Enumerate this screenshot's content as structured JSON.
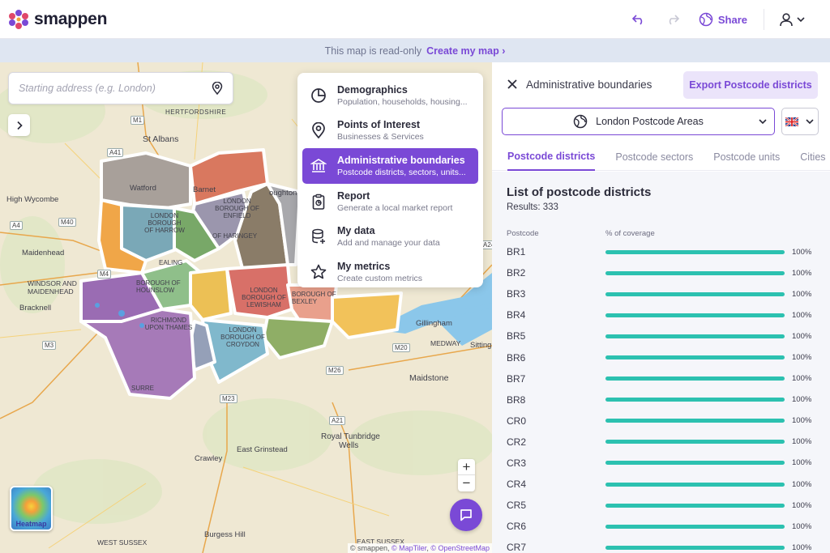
{
  "app": {
    "name": "smappen"
  },
  "header": {
    "share_label": "Share"
  },
  "banner": {
    "readonly_text": "This map is read-only",
    "create_link": "Create my map"
  },
  "search": {
    "placeholder": "Starting address (e.g. London)"
  },
  "menu": {
    "items": [
      {
        "title": "Demographics",
        "subtitle": "Population, households, housing...",
        "icon": "pie-chart-icon",
        "active": false
      },
      {
        "title": "Points of Interest",
        "subtitle": "Businesses & Services",
        "icon": "map-pin-icon",
        "active": false
      },
      {
        "title": "Administrative boundaries",
        "subtitle": "Postcode districts, sectors, units...",
        "icon": "bank-building-icon",
        "active": true
      },
      {
        "title": "Report",
        "subtitle": "Generate a local market report",
        "icon": "clipboard-icon",
        "active": false
      },
      {
        "title": "My data",
        "subtitle": "Add and manage your data",
        "icon": "database-icon",
        "active": false
      },
      {
        "title": "My metrics",
        "subtitle": "Create custom metrics",
        "icon": "star-icon",
        "active": false
      }
    ]
  },
  "map": {
    "labels": {
      "hertfordshire": "HERTFORDSHIRE",
      "st_albans": "St Albans",
      "high_wycombe": "High Wycombe",
      "watford": "Watford",
      "barnet": "Barnet",
      "loughton": "oughton",
      "maidenhead": "Maidenhead",
      "windsor": "WINDSOR AND",
      "maidenhead2": "MAIDENHEAD",
      "bracknell": "Bracknell",
      "gillingham": "Gillingham",
      "medway": "MEDWAY",
      "sitting": "Sitting",
      "maidstone": "Maidstone",
      "east_grinstead": "East Grinstead",
      "royal_tunbridge": "Royal Tunbridge",
      "wells": "Wells",
      "crawley": "Crawley",
      "west_sussex": "WEST SUSSEX",
      "burgess_hill": "Burgess Hill",
      "east_sussex": "EAST SUSSEX",
      "london_harrow": "LONDON BOROUGH OF HARROW",
      "london_enfield": "LONDON BOROUGH OF ENFIELD",
      "london_haringey": "OF HARINGEY",
      "london_hounslow": "BOROUGH OF HOUNSLOW",
      "richmond": "RICHMOND UPON THAMES",
      "lewisham": "LONDON BOROUGH OF LEWISHAM",
      "bexley": "BOROUGH OF BEXLEY",
      "croydon": "LONDON BOROUGH OF CROYDON",
      "ealing": "EALING",
      "surrey": "SURRE"
    },
    "roads": [
      "M1",
      "A41",
      "M40",
      "A4",
      "M4",
      "M3",
      "M26",
      "M23",
      "A21",
      "M20",
      "A249"
    ],
    "heatmap_label": "Heatmap",
    "attribution": {
      "prefix": "© smappen, ",
      "maptiler": "© MapTiler",
      "osm": "© OpenStreetMap"
    }
  },
  "panel": {
    "title": "Administrative boundaries",
    "export_label": "Export Postcode districts",
    "area_select": "London Postcode Areas",
    "tabs": [
      "Postcode districts",
      "Postcode sectors",
      "Postcode units",
      "Cities"
    ],
    "list_title": "List of postcode districts",
    "results_label": "Results: 333",
    "col_postcode": "Postcode",
    "col_coverage": "% of coverage",
    "rows": [
      {
        "code": "BR1",
        "coverage": 100,
        "label": "100%"
      },
      {
        "code": "BR2",
        "coverage": 100,
        "label": "100%"
      },
      {
        "code": "BR3",
        "coverage": 100,
        "label": "100%"
      },
      {
        "code": "BR4",
        "coverage": 100,
        "label": "100%"
      },
      {
        "code": "BR5",
        "coverage": 100,
        "label": "100%"
      },
      {
        "code": "BR6",
        "coverage": 100,
        "label": "100%"
      },
      {
        "code": "BR7",
        "coverage": 100,
        "label": "100%"
      },
      {
        "code": "BR8",
        "coverage": 100,
        "label": "100%"
      },
      {
        "code": "CR0",
        "coverage": 100,
        "label": "100%"
      },
      {
        "code": "CR2",
        "coverage": 100,
        "label": "100%"
      },
      {
        "code": "CR3",
        "coverage": 100,
        "label": "100%"
      },
      {
        "code": "CR4",
        "coverage": 100,
        "label": "100%"
      },
      {
        "code": "CR5",
        "coverage": 100,
        "label": "100%"
      },
      {
        "code": "CR6",
        "coverage": 100,
        "label": "100%"
      },
      {
        "code": "CR7",
        "coverage": 100,
        "label": "100%"
      }
    ]
  },
  "colors": {
    "accent": "#7a49d6",
    "bar": "#2cc1b0"
  }
}
